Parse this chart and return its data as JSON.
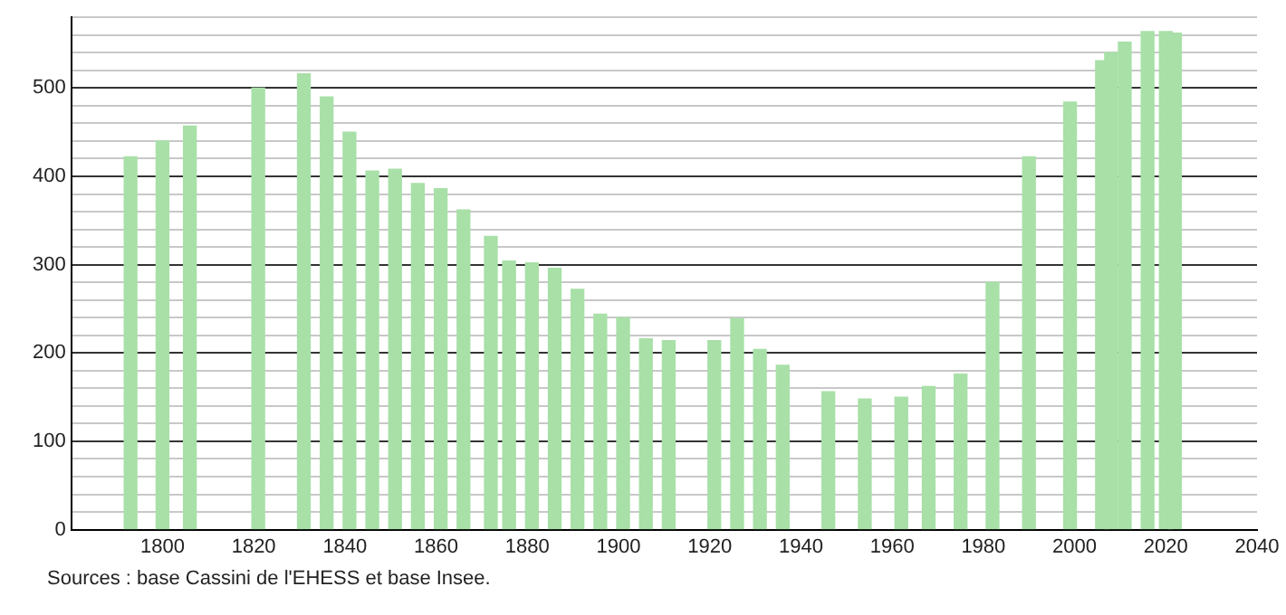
{
  "chart_data": {
    "type": "bar",
    "color": "#a8e0a8",
    "x": [
      1793,
      1800,
      1806,
      1821,
      1831,
      1836,
      1841,
      1846,
      1851,
      1856,
      1861,
      1866,
      1872,
      1876,
      1881,
      1886,
      1891,
      1896,
      1901,
      1906,
      1911,
      1921,
      1926,
      1931,
      1936,
      1946,
      1954,
      1962,
      1968,
      1975,
      1982,
      1990,
      1999,
      2006,
      2008,
      2011,
      2016,
      2020,
      2022
    ],
    "values": [
      422,
      440,
      457,
      500,
      516,
      490,
      450,
      406,
      408,
      392,
      386,
      362,
      332,
      304,
      302,
      296,
      272,
      244,
      240,
      216,
      214,
      214,
      239,
      204,
      186,
      156,
      148,
      150,
      162,
      176,
      280,
      422,
      484,
      531,
      540,
      552,
      564,
      564,
      562
    ],
    "xlim": [
      1780,
      2040
    ],
    "xticks": [
      1800,
      1820,
      1840,
      1860,
      1880,
      1900,
      1920,
      1940,
      1960,
      1980,
      2000,
      2020,
      2040
    ],
    "ylim": [
      0,
      580
    ],
    "yticks": [
      0,
      {
        "value": 20,
        "label": null
      },
      {
        "value": 40,
        "label": null
      },
      {
        "value": 60,
        "label": null
      },
      {
        "value": 80,
        "label": null
      },
      100,
      {
        "value": 120,
        "label": null
      },
      {
        "value": 140,
        "label": null
      },
      {
        "value": 160,
        "label": null
      },
      {
        "value": 180,
        "label": null
      },
      200,
      {
        "value": 220,
        "label": null
      },
      {
        "value": 240,
        "label": null
      },
      {
        "value": 260,
        "label": null
      },
      {
        "value": 280,
        "label": null
      },
      300,
      {
        "value": 320,
        "label": null
      },
      {
        "value": 340,
        "label": null
      },
      {
        "value": 360,
        "label": null
      },
      {
        "value": 380,
        "label": null
      },
      400,
      {
        "value": 420,
        "label": null
      },
      {
        "value": 440,
        "label": null
      },
      {
        "value": 460,
        "label": null
      },
      {
        "value": 480,
        "label": null
      },
      500,
      {
        "value": 520,
        "label": null
      },
      {
        "value": 540,
        "label": null
      },
      {
        "value": 560,
        "label": null
      },
      {
        "value": 580,
        "label": null
      }
    ],
    "grid": "y",
    "annotations": [
      "Sources : base Cassini de l'EHESS et base Insee."
    ]
  }
}
